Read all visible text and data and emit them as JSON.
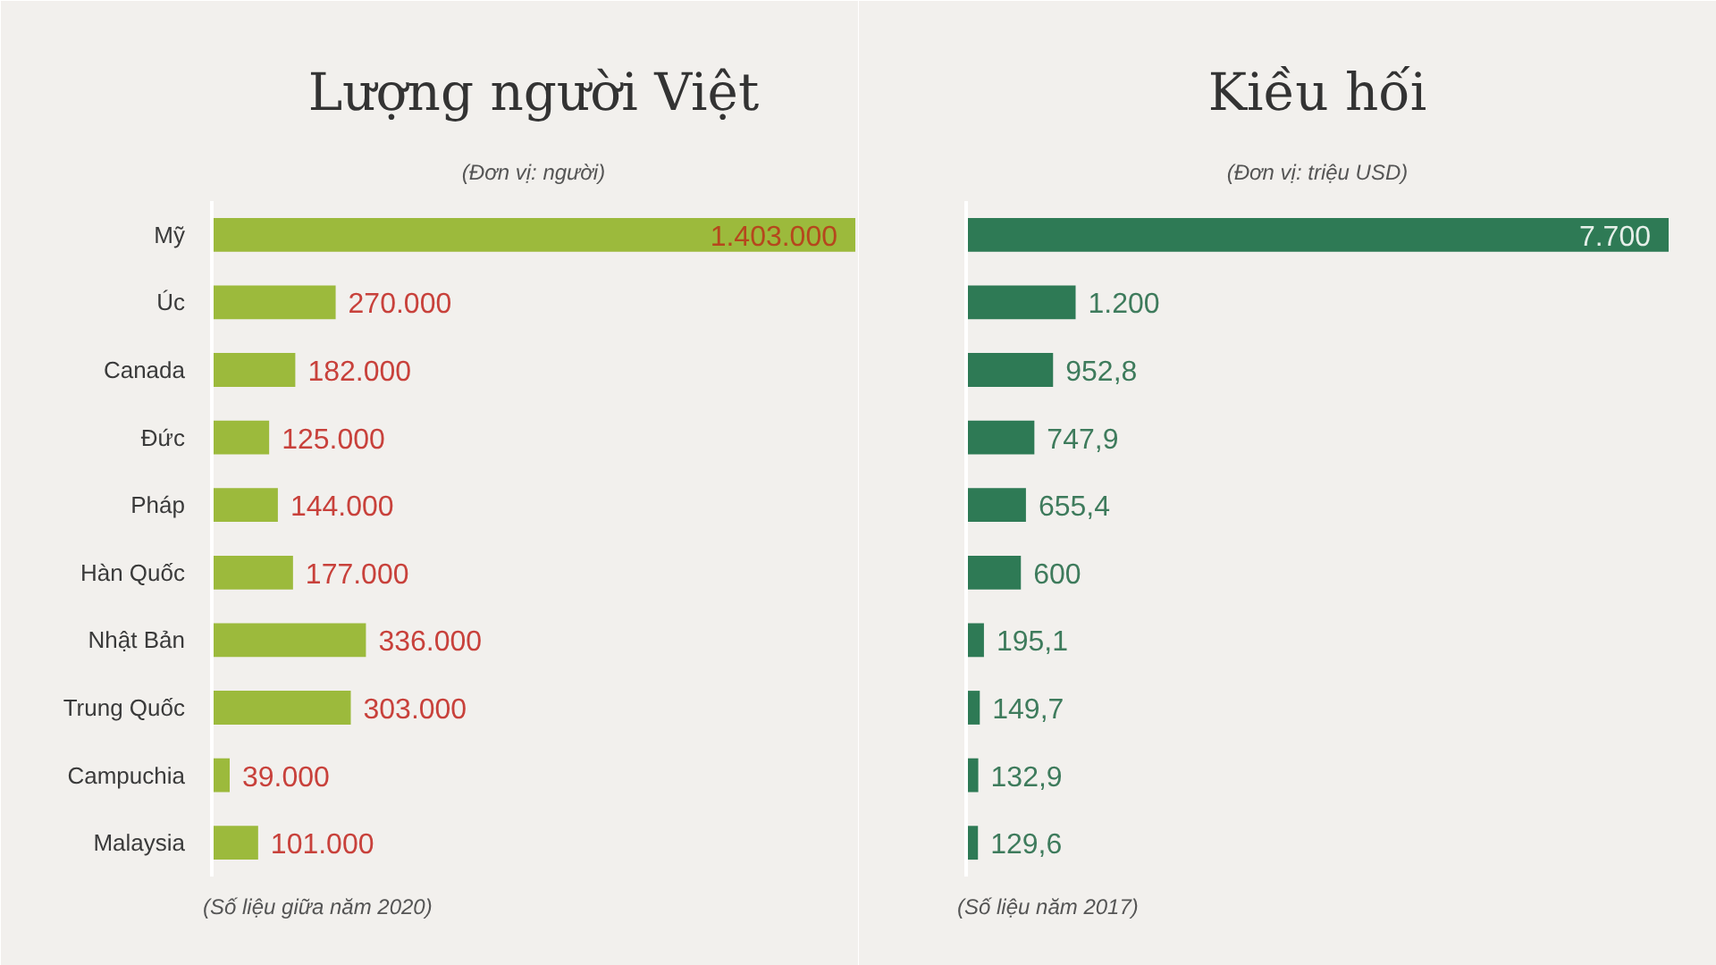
{
  "chart_data": [
    {
      "type": "bar",
      "orientation": "horizontal",
      "title": "Lượng người Việt",
      "subtitle": "(Đơn vị: người)",
      "categories": [
        "Mỹ",
        "Úc",
        "Canada",
        "Đức",
        "Pháp",
        "Hàn Quốc",
        "Nhật Bản",
        "Trung Quốc",
        "Campuchia",
        "Malaysia"
      ],
      "values": [
        1403000,
        270000,
        182000,
        125000,
        144000,
        177000,
        336000,
        303000,
        39000,
        101000
      ],
      "color": "#9cba3c",
      "value_labels": [
        "1.403.000",
        "270.000",
        "182.000",
        "125.000",
        "144.000",
        "177.000",
        "336.000",
        "303.000",
        "39.000",
        "101.000"
      ],
      "xlim": [
        0,
        1403000
      ],
      "tick_labels": "y",
      "annotations": [
        "(Số liệu giữa năm 2020)"
      ]
    },
    {
      "type": "bar",
      "orientation": "horizontal",
      "title": "Kiều hối",
      "subtitle": "(Đơn vị: triệu USD)",
      "categories": [
        null,
        null,
        null,
        null,
        null,
        null,
        null,
        null,
        null,
        null
      ],
      "values": [
        7700,
        1200,
        952.8,
        747.9,
        655.4,
        600,
        195.1,
        149.7,
        132.9,
        129.6
      ],
      "color": "#2e7a55",
      "value_labels": [
        "7.700",
        "1.200",
        "952,8",
        "747,9",
        "655,4",
        "600",
        "195,1",
        "149,7",
        "132,9",
        "129,6"
      ],
      "xlim": [
        0,
        7700
      ],
      "tick_labels": false,
      "annotations": [
        "(Số liệu năm 2017)"
      ]
    }
  ]
}
